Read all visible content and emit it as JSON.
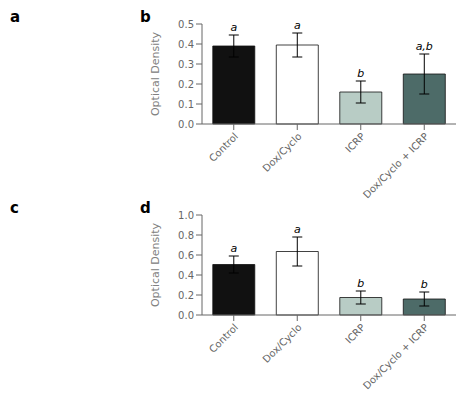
{
  "chart_data": [
    {
      "type": "bar",
      "categories": [
        "Control",
        "Dox/Cyclo",
        "ICRP",
        "Dox/Cyclo + ICRP"
      ],
      "values": [
        0.39,
        0.395,
        0.16,
        0.25
      ],
      "errors": [
        0.055,
        0.06,
        0.055,
        0.1
      ],
      "colors": [
        "#111111",
        "#ffffff",
        "#b8ccc5",
        "#4d6b68"
      ],
      "ylabel": "Optical Density",
      "ylim": [
        0,
        0.5
      ],
      "yticks": [
        {
          "value": 0,
          "label": "0.0"
        },
        0.1,
        0.2,
        0.3,
        0.4,
        0.5
      ],
      "annotations": [
        {
          "text": "a"
        },
        {
          "text": "b"
        },
        {
          "category": "Control",
          "text": "a"
        },
        {
          "category": "Dox/Cyclo",
          "text": "a"
        },
        {
          "category": "ICRP",
          "text": "b"
        },
        {
          "category": "Dox/Cyclo + ICRP",
          "text": "a,b"
        }
      ]
    },
    {
      "type": "bar",
      "categories": [
        "Control",
        "Dox/Cyclo",
        "ICRP",
        "Dox/Cyclo + ICRP"
      ],
      "values": [
        0.505,
        0.635,
        0.175,
        0.16
      ],
      "errors": [
        0.085,
        0.145,
        0.065,
        0.07
      ],
      "colors": [
        "#111111",
        "#ffffff",
        "#b8ccc5",
        "#4d6b68"
      ],
      "ylabel": "Optical Density",
      "ylim": [
        0,
        1.0
      ],
      "yticks": [
        {
          "value": 0,
          "label": "0.0"
        },
        0.2,
        0.4,
        0.6,
        0.8,
        {
          "value": 1.0,
          "label": "1.0"
        }
      ],
      "annotations": [
        {
          "text": "c"
        },
        {
          "text": "d"
        },
        {
          "category": "Control",
          "text": "a"
        },
        {
          "category": "Dox/Cyclo",
          "text": "a"
        },
        {
          "category": "ICRP",
          "text": "b"
        },
        {
          "category": "Dox/Cyclo + ICRP",
          "text": "b"
        }
      ]
    }
  ]
}
